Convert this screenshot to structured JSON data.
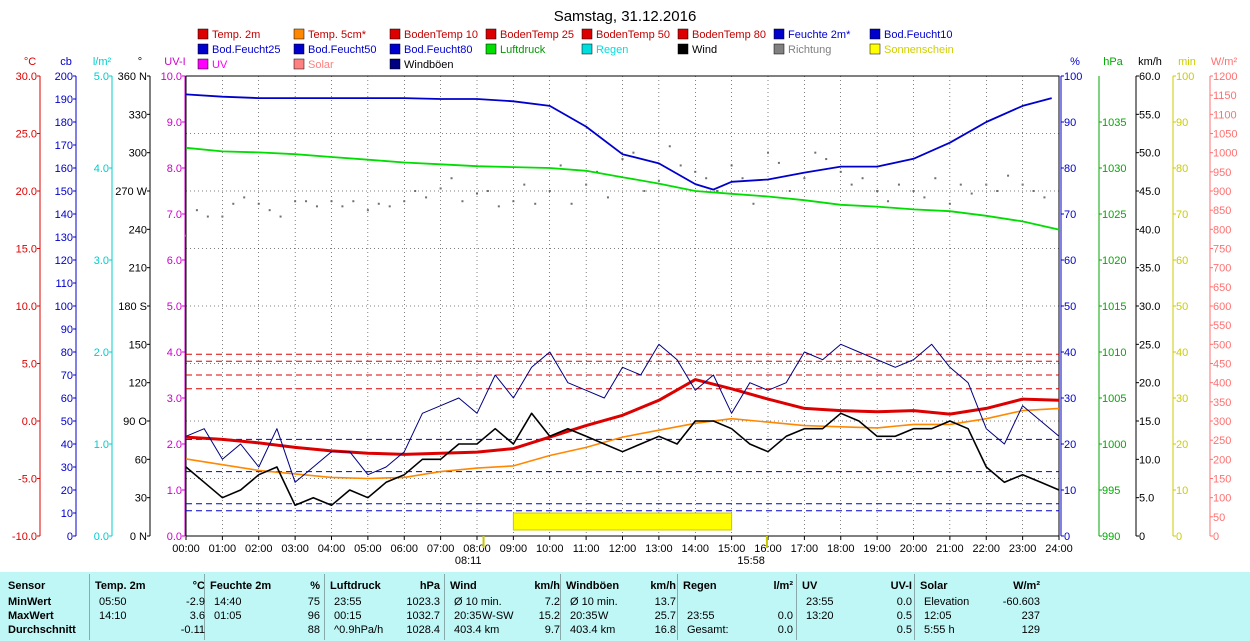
{
  "chart_data": {
    "type": "line",
    "title": "Samstag, 31.12.2016",
    "legend": [
      {
        "label": "Temp. 2m",
        "color": "#dd0000"
      },
      {
        "label": "Temp. 5cm*",
        "color": "#ff8800"
      },
      {
        "label": "BodenTemp 10",
        "color": "#dd0000"
      },
      {
        "label": "BodenTemp 25",
        "color": "#dd0000"
      },
      {
        "label": "BodenTemp 50",
        "color": "#dd0000"
      },
      {
        "label": "BodenTemp 80",
        "color": "#dd0000"
      },
      {
        "label": "Feuchte 2m*",
        "color": "#0000cc"
      },
      {
        "label": "Bod.Feucht10",
        "color": "#0000cc"
      },
      {
        "label": "Bod.Feucht25",
        "color": "#0000cc"
      },
      {
        "label": "Bod.Feucht50",
        "color": "#0000cc"
      },
      {
        "label": "Bod.Feucht80",
        "color": "#0000cc"
      },
      {
        "label": "Luftdruck",
        "color": "#00dd00"
      },
      {
        "label": "Regen",
        "color": "#00dddd"
      },
      {
        "label": "Wind",
        "color": "#000000"
      },
      {
        "label": "Richtung",
        "color": "#808080"
      },
      {
        "label": "Sonnenschein",
        "color": "#ffff00"
      },
      {
        "label": "UV",
        "color": "#ff00ff"
      },
      {
        "label": "Solar",
        "color": "#ff8080"
      },
      {
        "label": "Windböen",
        "color": "#000080"
      }
    ],
    "x_ticks": [
      "00:00",
      "01:00",
      "02:00",
      "03:00",
      "04:00",
      "05:00",
      "06:00",
      "07:00",
      "08:00",
      "09:00",
      "10:00",
      "11:00",
      "12:00",
      "13:00",
      "14:00",
      "15:00",
      "16:00",
      "17:00",
      "18:00",
      "19:00",
      "20:00",
      "21:00",
      "22:00",
      "23:00",
      "24:00"
    ],
    "x_markers": [
      {
        "label": "08:11",
        "hour": 8.18
      },
      {
        "label": "15:58",
        "hour": 15.97
      }
    ],
    "axes": [
      {
        "id": "temp",
        "unit": "°C",
        "color": "#dd0000",
        "range": [
          -10,
          30
        ],
        "ticks": [
          "-10.0",
          "-5.0",
          "0.0",
          "5.0",
          "10.0",
          "15.0",
          "20.0",
          "25.0",
          "30.0"
        ]
      },
      {
        "id": "cb",
        "unit": "cb",
        "color": "#0000cc",
        "range": [
          0,
          200
        ],
        "ticks": [
          "0",
          "10",
          "20",
          "30",
          "40",
          "50",
          "60",
          "70",
          "80",
          "90",
          "100",
          "110",
          "120",
          "130",
          "140",
          "150",
          "160",
          "170",
          "180",
          "190",
          "200"
        ]
      },
      {
        "id": "rain",
        "unit": "l/m²",
        "color": "#00cccc",
        "range": [
          0,
          5
        ],
        "ticks": [
          "0.0",
          "1.0",
          "2.0",
          "3.0",
          "4.0",
          "5.0"
        ]
      },
      {
        "id": "dir",
        "unit": "°",
        "color": "#000000",
        "range": [
          0,
          360
        ],
        "ticks": [
          "0 N",
          "30",
          "60",
          "90 O",
          "120",
          "150",
          "180 S",
          "210",
          "240",
          "270 W",
          "300",
          "330",
          "360 N"
        ]
      },
      {
        "id": "uv",
        "unit": "UV-I",
        "color": "#cc00cc",
        "range": [
          0,
          10
        ],
        "ticks": [
          "0.0",
          "1.0",
          "2.0",
          "3.0",
          "4.0",
          "5.0",
          "6.0",
          "7.0",
          "8.0",
          "9.0",
          "10.0"
        ]
      },
      {
        "id": "hum",
        "unit": "%",
        "color": "#0000cc",
        "range": [
          0,
          100
        ],
        "ticks": [
          "0",
          "10",
          "20",
          "30",
          "40",
          "50",
          "60",
          "70",
          "80",
          "90",
          "100"
        ]
      },
      {
        "id": "press",
        "unit": "hPa",
        "color": "#00aa00",
        "range": [
          990,
          1040
        ],
        "ticks": [
          "990",
          "995",
          "1000",
          "1005",
          "1010",
          "1015",
          "1020",
          "1025",
          "1030",
          "1035"
        ]
      },
      {
        "id": "wind",
        "unit": "km/h",
        "color": "#000000",
        "range": [
          0,
          60
        ],
        "ticks": [
          "0",
          "5.0",
          "10.0",
          "15.0",
          "20.0",
          "25.0",
          "30.0",
          "35.0",
          "40.0",
          "45.0",
          "50.0",
          "55.0",
          "60.0"
        ]
      },
      {
        "id": "sun",
        "unit": "min",
        "color": "#cccc00",
        "range": [
          0,
          100
        ],
        "ticks": [
          "0",
          "10",
          "20",
          "30",
          "40",
          "50",
          "60",
          "70",
          "80",
          "90",
          "100"
        ]
      },
      {
        "id": "solar",
        "unit": "W/m²",
        "color": "#ff7070",
        "range": [
          0,
          1200
        ],
        "ticks": [
          "0",
          "50",
          "100",
          "150",
          "200",
          "250",
          "300",
          "350",
          "400",
          "450",
          "500",
          "550",
          "600",
          "650",
          "700",
          "750",
          "800",
          "850",
          "900",
          "950",
          "1000",
          "1050",
          "1100",
          "1150",
          "1200"
        ]
      }
    ],
    "series": [
      {
        "name": "Feuchte 2m*",
        "axis": "hum",
        "color": "#0000cc",
        "x": [
          0,
          1,
          2,
          3,
          4,
          5,
          6,
          7,
          8,
          9,
          10,
          11,
          12,
          13,
          14,
          14.5,
          15,
          16,
          17,
          18,
          19,
          20,
          21,
          22,
          23,
          23.8
        ],
        "values": [
          96,
          95.5,
          95.2,
          95.2,
          95.2,
          95.2,
          95.2,
          95,
          95,
          94.5,
          93.5,
          89,
          83,
          81,
          76.5,
          75.3,
          77,
          77.5,
          79,
          80.3,
          80.3,
          82,
          85.5,
          90,
          93.5,
          95.2
        ]
      },
      {
        "name": "Luftdruck",
        "axis": "press",
        "color": "#00dd00",
        "x": [
          0,
          1,
          2,
          3,
          4,
          5,
          6,
          7,
          8,
          9,
          10,
          11,
          12,
          13,
          14,
          15,
          16,
          17,
          18,
          19,
          20,
          21,
          22,
          23,
          24
        ],
        "values": [
          1032.2,
          1031.8,
          1031.7,
          1031.5,
          1031.2,
          1030.9,
          1030.6,
          1030.4,
          1030.2,
          1030.1,
          1030,
          1029.7,
          1029,
          1028.3,
          1027.5,
          1027.2,
          1026.9,
          1026.5,
          1026,
          1025.8,
          1025.5,
          1025.3,
          1024.8,
          1024.2,
          1023.3
        ]
      },
      {
        "name": "Temp. 2m",
        "axis": "temp",
        "color": "#dd0000",
        "x": [
          0,
          1,
          2,
          3,
          4,
          5,
          6,
          7,
          8,
          9,
          10,
          11,
          12,
          13,
          14,
          15,
          16,
          17,
          18,
          19,
          20,
          21,
          22,
          23,
          24
        ],
        "values": [
          -1.4,
          -1.6,
          -1.9,
          -2.3,
          -2.6,
          -2.8,
          -2.9,
          -2.8,
          -2.7,
          -2.4,
          -1.4,
          -0.4,
          0.5,
          1.8,
          3.6,
          2.8,
          1.9,
          1.1,
          0.9,
          0.8,
          0.9,
          0.6,
          1.1,
          1.9,
          1.8
        ]
      },
      {
        "name": "Temp. 5cm*",
        "axis": "temp",
        "color": "#ff8800",
        "x": [
          0,
          1,
          2,
          3,
          4,
          5,
          6,
          7,
          8,
          9,
          10,
          11,
          12,
          13,
          14,
          15,
          16,
          17,
          18,
          19,
          20,
          21,
          22,
          23,
          24
        ],
        "values": [
          -3.3,
          -3.8,
          -4.3,
          -4.6,
          -4.9,
          -5.0,
          -4.9,
          -4.4,
          -4.1,
          -3.9,
          -3.0,
          -2.3,
          -1.4,
          -0.8,
          -0.2,
          0.2,
          -0.1,
          -0.4,
          -0.5,
          -0.6,
          -0.3,
          -0.3,
          0.2,
          0.9,
          1.1
        ]
      },
      {
        "name": "Wind",
        "axis": "wind",
        "color": "#000000",
        "x": [
          0,
          0.5,
          1,
          1.5,
          2,
          2.5,
          3,
          3.5,
          4,
          4.5,
          5,
          5.5,
          6,
          6.5,
          7,
          7.5,
          8,
          8.5,
          9,
          9.5,
          10,
          10.5,
          11,
          11.5,
          12,
          12.5,
          13,
          13.5,
          14,
          14.5,
          15,
          15.5,
          16,
          16.5,
          17,
          17.5,
          18,
          18.5,
          19,
          19.5,
          20,
          20.5,
          21,
          21.5,
          22,
          22.5,
          23,
          23.5,
          24
        ],
        "values": [
          9,
          7,
          5,
          6,
          8,
          9,
          4,
          5,
          4,
          6,
          5,
          7,
          8,
          10,
          10,
          12,
          12,
          14,
          12,
          16,
          13,
          14,
          13,
          12,
          11,
          12,
          13,
          12,
          15,
          15,
          14,
          12,
          11,
          13,
          14,
          14,
          16,
          15,
          13,
          13,
          14,
          14,
          15,
          14,
          9,
          7,
          8,
          7,
          6
        ]
      },
      {
        "name": "Windböen",
        "axis": "wind",
        "color": "#000080",
        "x": [
          0,
          0.5,
          1,
          1.5,
          2,
          2.5,
          3,
          3.5,
          4,
          4.5,
          5,
          5.5,
          6,
          6.5,
          7,
          7.5,
          8,
          8.5,
          9,
          9.5,
          10,
          10.5,
          11,
          11.5,
          12,
          12.5,
          13,
          13.5,
          14,
          14.5,
          15,
          15.5,
          16,
          16.5,
          17,
          17.5,
          18,
          18.5,
          19,
          19.5,
          20,
          20.5,
          21,
          21.5,
          22,
          22.5,
          23,
          23.5,
          24
        ],
        "values": [
          13,
          14,
          10,
          12,
          9,
          14,
          7,
          9,
          11,
          11,
          8,
          9,
          11,
          16,
          17,
          18,
          16,
          21,
          18,
          22,
          24,
          20,
          19,
          18,
          22,
          21,
          25,
          23,
          19,
          21,
          16,
          20,
          19,
          20,
          24,
          23,
          25,
          24,
          23,
          22,
          23,
          25,
          22,
          20,
          14,
          12,
          17,
          15,
          13
        ]
      }
    ],
    "reference_lines": [
      {
        "name": "BodenTemp 10",
        "axis": "temp",
        "value": 2.8,
        "style": "dashed",
        "color": "#dd0000"
      },
      {
        "name": "BodenTemp 25",
        "axis": "temp",
        "value": 4.0,
        "style": "dashed",
        "color": "#dd0000"
      },
      {
        "name": "BodenTemp 50",
        "axis": "temp",
        "value": 5.2,
        "style": "dashed",
        "color": "#dd0000"
      },
      {
        "name": "BodenTemp 80",
        "axis": "temp",
        "value": 5.8,
        "style": "dashed",
        "color": "#dd0000"
      },
      {
        "name": "Bod.Feucht10",
        "axis": "cb",
        "value": 42,
        "style": "dashed",
        "color": "#0000cc"
      },
      {
        "name": "Bod.Feucht25",
        "axis": "cb",
        "value": 28,
        "style": "dashed",
        "color": "#0000cc"
      },
      {
        "name": "Bod.Feucht50",
        "axis": "cb",
        "value": 14,
        "style": "dashed",
        "color": "#0000cc"
      },
      {
        "name": "Bod.Feucht80",
        "axis": "cb",
        "value": 11,
        "style": "dashed",
        "color": "#0000cc"
      }
    ],
    "sunshine_bar": {
      "axis": "sun",
      "value": 5,
      "start": 9,
      "end": 15
    },
    "direction_dots": {
      "axis": "dir",
      "x": [
        0,
        0.3,
        0.6,
        1,
        1.3,
        1.6,
        2,
        2.3,
        2.6,
        3,
        3.3,
        3.6,
        4,
        4.3,
        4.6,
        5,
        5.3,
        5.6,
        6,
        6.3,
        6.6,
        7,
        7.3,
        7.6,
        8,
        8.3,
        8.6,
        9,
        9.3,
        9.6,
        10,
        10.3,
        10.6,
        11,
        11.3,
        11.6,
        12,
        12.3,
        12.6,
        13,
        13.3,
        13.6,
        14,
        14.3,
        14.6,
        15,
        15.3,
        15.6,
        16,
        16.3,
        16.6,
        17,
        17.3,
        17.6,
        18,
        18.3,
        18.6,
        19,
        19.3,
        19.6,
        20,
        20.3,
        20.6,
        21,
        21.3,
        21.6,
        22,
        22.3,
        22.6,
        23,
        23.3,
        23.6
      ],
      "values": [
        235,
        255,
        250,
        250,
        260,
        265,
        260,
        255,
        250,
        262,
        262,
        258,
        262,
        258,
        262,
        255,
        260,
        258,
        262,
        270,
        265,
        272,
        280,
        262,
        268,
        270,
        258,
        262,
        275,
        260,
        270,
        290,
        260,
        275,
        285,
        265,
        295,
        300,
        270,
        278,
        305,
        290,
        285,
        280,
        270,
        290,
        280,
        260,
        300,
        292,
        270,
        280,
        300,
        295,
        285,
        275,
        280,
        270,
        262,
        275,
        270,
        265,
        280,
        260,
        275,
        268,
        275,
        270,
        282,
        275,
        270,
        265
      ]
    }
  },
  "stats": {
    "headers": [
      {
        "name": "Sensor"
      },
      {
        "name": "Temp. 2m",
        "unit": "°C"
      },
      {
        "name": "Feuchte 2m",
        "unit": "%"
      },
      {
        "name": "Luftdruck",
        "unit": "hPa"
      },
      {
        "name": "Wind",
        "unit": "km/h"
      },
      {
        "name": "Windböen",
        "unit": "km/h"
      },
      {
        "name": "Regen",
        "unit": "l/m²"
      },
      {
        "name": "UV",
        "unit": "UV-I"
      },
      {
        "name": "Solar",
        "unit": "W/m²"
      }
    ],
    "rows": [
      {
        "label": "MinWert",
        "cells": [
          [
            "05:50",
            "-2.9"
          ],
          [
            "14:40",
            "75"
          ],
          [
            "23:55",
            "1023.3"
          ],
          [
            "Ø 10 min.",
            "",
            "7.2"
          ],
          [
            "Ø 10 min.",
            "",
            "13.7"
          ],
          [
            "",
            ""
          ],
          [
            "23:55",
            "0.0"
          ],
          [
            "Elevation",
            "-60.603"
          ]
        ]
      },
      {
        "label": "MaxWert",
        "cells": [
          [
            "14:10",
            "3.6"
          ],
          [
            "01:05",
            "96"
          ],
          [
            "00:15",
            "1032.7"
          ],
          [
            "20:35",
            "W-SW",
            "15.2"
          ],
          [
            "20:35",
            "W",
            "25.7"
          ],
          [
            "23:55",
            "0.0"
          ],
          [
            "13:20",
            "0.5"
          ],
          [
            "12:05",
            "237"
          ]
        ]
      },
      {
        "label": "Durchschnitt",
        "cells": [
          [
            "",
            "-0.11"
          ],
          [
            "",
            "88"
          ],
          [
            "^0.9hPa/h",
            "1028.4"
          ],
          [
            "403.4 km",
            "",
            "9.7"
          ],
          [
            "403.4 km",
            "",
            "16.8"
          ],
          [
            "Gesamt:",
            "0.0"
          ],
          [
            "",
            "0.5"
          ],
          [
            "5:55 h",
            "129"
          ]
        ]
      }
    ]
  }
}
